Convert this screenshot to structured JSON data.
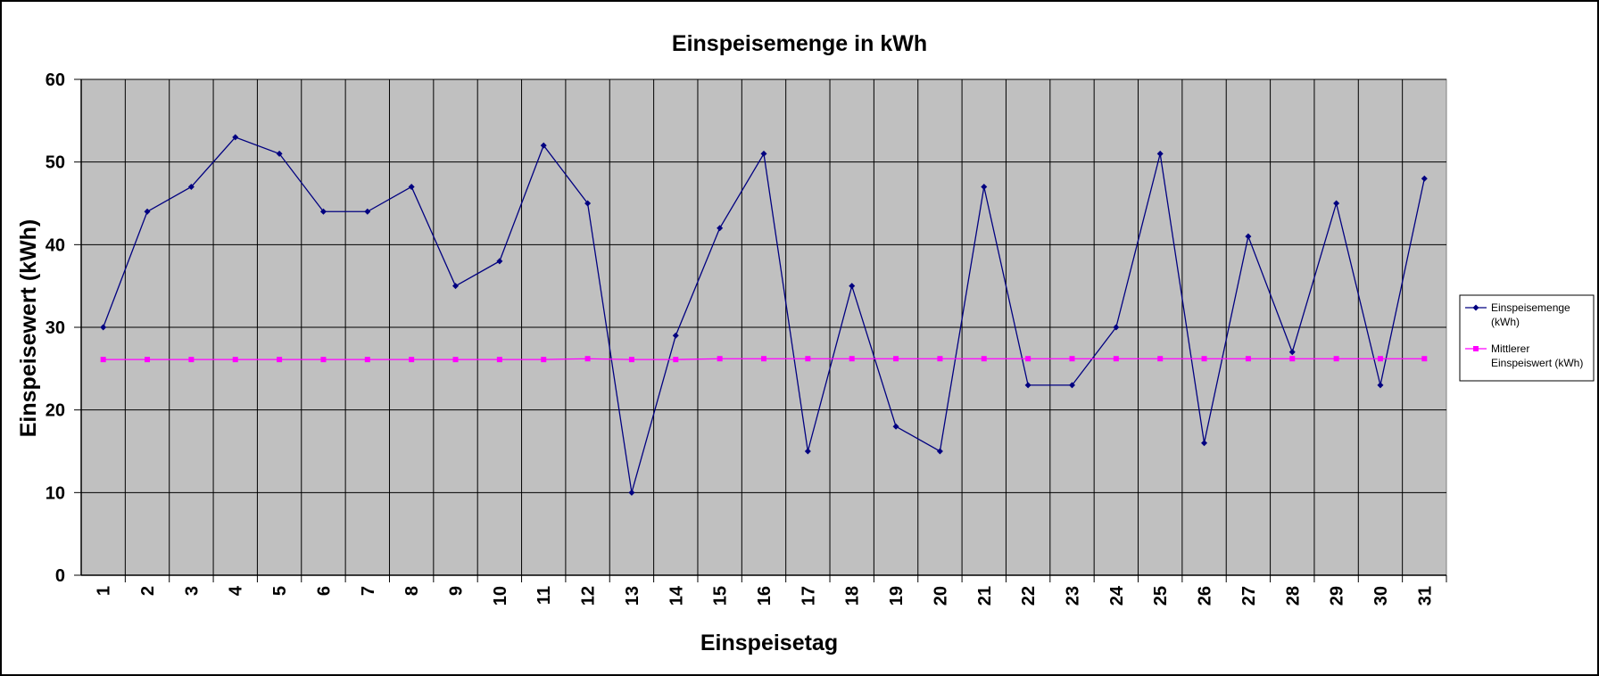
{
  "chart_data": {
    "type": "line",
    "title": "Einspeisemenge in kWh",
    "xlabel": "Einspeisetag",
    "ylabel": "Einspeisewert  (kWh)",
    "ylim": [
      0,
      60
    ],
    "yticks": [
      "0",
      "10",
      "20",
      "30",
      "40",
      "50",
      "60"
    ],
    "grid": true,
    "legend_position": "right",
    "categories": [
      "1",
      "2",
      "3",
      "4",
      "5",
      "6",
      "7",
      "8",
      "9",
      "10",
      "11",
      "12",
      "13",
      "14",
      "15",
      "16",
      "17",
      "18",
      "19",
      "20",
      "21",
      "22",
      "23",
      "24",
      "25",
      "26",
      "27",
      "28",
      "29",
      "30",
      "31"
    ],
    "series": [
      {
        "name": "Einspeisemenge (kWh)",
        "legend_lines": [
          "Einspeisemenge",
          "(kWh)"
        ],
        "color": "#000080",
        "marker": "diamond",
        "values": [
          30,
          44,
          47,
          53,
          51,
          44,
          44,
          47,
          35,
          38,
          52,
          45,
          10,
          29,
          42,
          51,
          15,
          35,
          18,
          15,
          47,
          23,
          23,
          30,
          51,
          16,
          41,
          27,
          45,
          23,
          48
        ]
      },
      {
        "name": "Mittlerer Einspeiswert (kWh)",
        "legend_lines": [
          "Mittlerer",
          "Einspeiswert (kWh)"
        ],
        "color": "#ff00ff",
        "marker": "square",
        "values": [
          26.1,
          26.1,
          26.1,
          26.1,
          26.1,
          26.1,
          26.1,
          26.1,
          26.1,
          26.1,
          26.1,
          26.2,
          26.1,
          26.1,
          26.2,
          26.2,
          26.2,
          26.2,
          26.2,
          26.2,
          26.2,
          26.2,
          26.2,
          26.2,
          26.2,
          26.2,
          26.2,
          26.2,
          26.2,
          26.2,
          26.2
        ]
      }
    ],
    "colors": {
      "plot_background": "#c0c0c0",
      "gridline": "#000000",
      "page_background": "#ffffff"
    }
  }
}
